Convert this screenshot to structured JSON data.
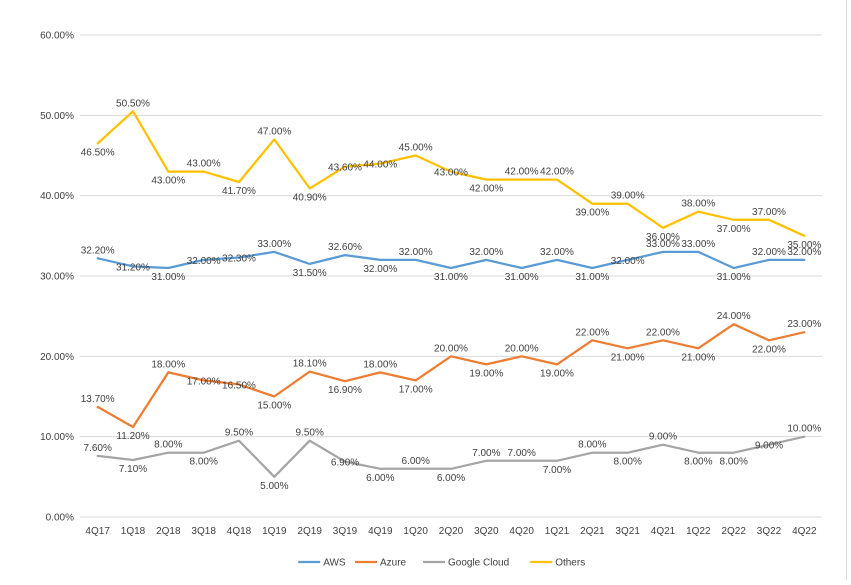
{
  "chart_data": {
    "type": "line",
    "title": "",
    "xlabel": "",
    "ylabel": "",
    "ylim": [
      0,
      60
    ],
    "ytick_values": [
      0,
      10,
      20,
      30,
      40,
      50,
      60
    ],
    "ytick_labels": [
      "0.00%",
      "10.00%",
      "20.00%",
      "30.00%",
      "40.00%",
      "50.00%",
      "60.00%"
    ],
    "grid": true,
    "legend_position": "bottom",
    "categories": [
      "4Q17",
      "1Q18",
      "2Q18",
      "3Q18",
      "4Q18",
      "1Q19",
      "2Q19",
      "3Q19",
      "4Q19",
      "1Q20",
      "2Q20",
      "3Q20",
      "4Q20",
      "1Q21",
      "2Q21",
      "3Q21",
      "4Q21",
      "1Q22",
      "2Q22",
      "3Q22",
      "4Q22"
    ],
    "series": [
      {
        "name": "AWS",
        "color": "#5b9bd5",
        "values": [
          32.2,
          31.2,
          31.0,
          32.0,
          32.3,
          33.0,
          31.5,
          32.6,
          32.0,
          32.0,
          31.0,
          32.0,
          31.0,
          32.0,
          31.0,
          32.0,
          33.0,
          33.0,
          31.0,
          32.0,
          32.0
        ],
        "labels": [
          "32.20%",
          "31.20%",
          "31.00%",
          "32.00%",
          "32.30%",
          "33.00%",
          "31.50%",
          "32.60%",
          "32.00%",
          "32.00%",
          "31.00%",
          "32.00%",
          "31.00%",
          "32.00%",
          "31.00%",
          "32.00%",
          "33.00%",
          "33.00%",
          "31.00%",
          "32.00%",
          "32.00%"
        ]
      },
      {
        "name": "Azure",
        "color": "#ed7d31",
        "values": [
          13.7,
          11.2,
          18.0,
          17.0,
          16.5,
          15.0,
          18.1,
          16.9,
          18.0,
          17.0,
          20.0,
          19.0,
          20.0,
          19.0,
          22.0,
          21.0,
          22.0,
          21.0,
          24.0,
          22.0,
          23.0
        ],
        "labels": [
          "13.70%",
          "11.20%",
          "18.00%",
          "17.00%",
          "16.50%",
          "15.00%",
          "18.10%",
          "16.90%",
          "18.00%",
          "17.00%",
          "20.00%",
          "19.00%",
          "20.00%",
          "19.00%",
          "22.00%",
          "21.00%",
          "22.00%",
          "21.00%",
          "24.00%",
          "22.00%",
          "23.00%"
        ]
      },
      {
        "name": "Google Cloud",
        "color": "#a5a5a5",
        "values": [
          7.6,
          7.1,
          8.0,
          8.0,
          9.5,
          5.0,
          9.5,
          6.9,
          6.0,
          6.0,
          6.0,
          7.0,
          7.0,
          7.0,
          8.0,
          8.0,
          9.0,
          8.0,
          8.0,
          9.0,
          10.0
        ],
        "labels": [
          "7.60%",
          "7.10%",
          "8.00%",
          "8.00%",
          "9.50%",
          "5.00%",
          "9.50%",
          "6.90%",
          "6.00%",
          "6.00%",
          "6.00%",
          "7.00%",
          "7.00%",
          "7.00%",
          "8.00%",
          "8.00%",
          "9.00%",
          "8.00%",
          "8.00%",
          "9.00%",
          "10.00%"
        ]
      },
      {
        "name": "Others",
        "color": "#ffc000",
        "values": [
          46.5,
          50.5,
          43.0,
          43.0,
          41.7,
          47.0,
          40.9,
          43.6,
          44.0,
          45.0,
          43.0,
          42.0,
          42.0,
          42.0,
          39.0,
          39.0,
          36.0,
          38.0,
          37.0,
          37.0,
          35.0
        ],
        "labels": [
          "46.50%",
          "50.50%",
          "43.00%",
          "43.00%",
          "41.70%",
          "47.00%",
          "40.90%",
          "43.60%",
          "44.00%",
          "45.00%",
          "43.00%",
          "42.00%",
          "42.00%",
          "42.00%",
          "39.00%",
          "39.00%",
          "36.00%",
          "38.00%",
          "37.00%",
          "37.00%",
          "35.00%"
        ]
      }
    ]
  }
}
